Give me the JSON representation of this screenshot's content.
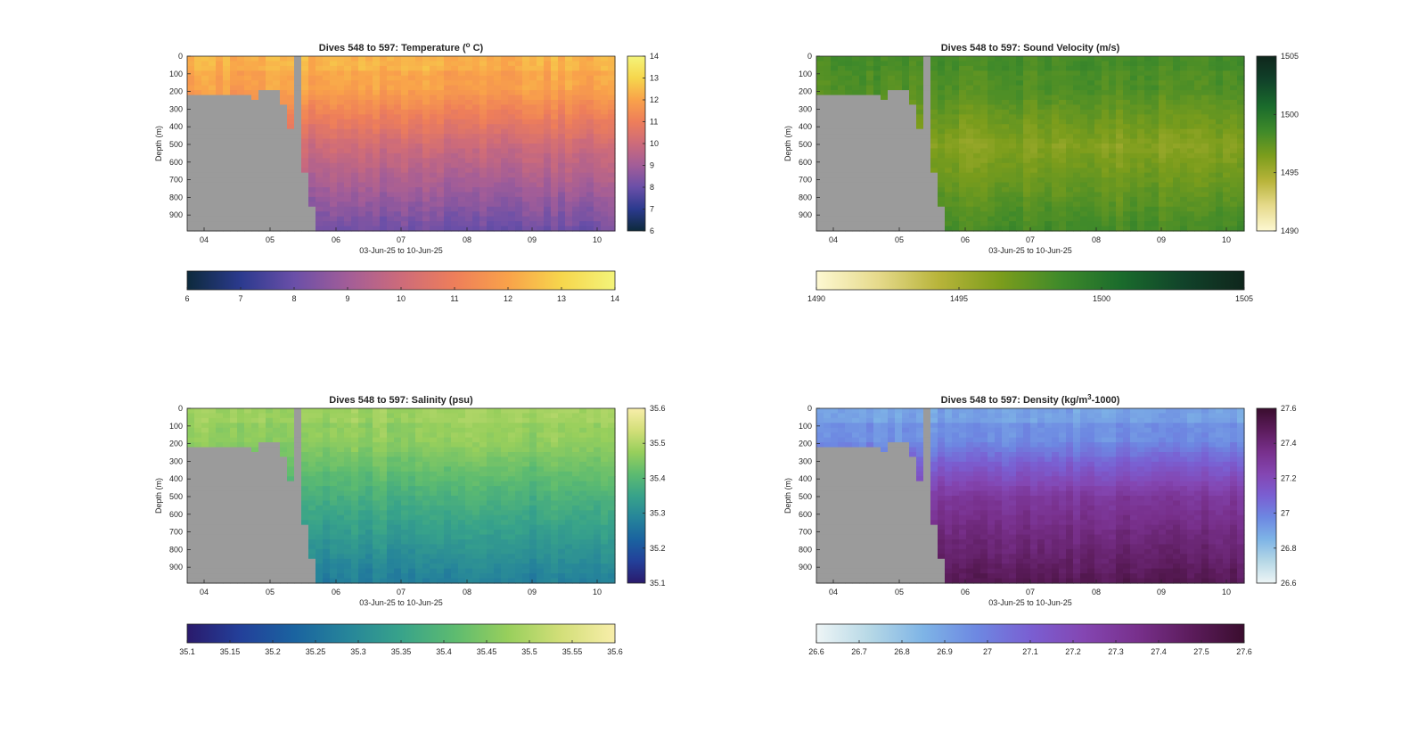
{
  "figure": {
    "panels": [
      {
        "id": "temperature",
        "title": "Dives 548 to 597: Temperature (",
        "title_sup": "o",
        "title_end": " C)",
        "ylabel": "Depth (m)",
        "xlabel": "03-Jun-25 to 10-Jun-25",
        "xticks": [
          "04",
          "05",
          "06",
          "07",
          "08",
          "09",
          "10"
        ],
        "yticks": [
          "0",
          "100",
          "200",
          "300",
          "400",
          "500",
          "600",
          "700",
          "800",
          "900"
        ],
        "colorbar_ticks": [
          "6",
          "7",
          "8",
          "9",
          "10",
          "11",
          "12",
          "13",
          "14"
        ],
        "side_colorbar_ticks": [
          "6",
          "7",
          "8",
          "9",
          "10",
          "11",
          "12",
          "13",
          "14"
        ],
        "colormap": [
          "#0d2a3c",
          "#2b3a8e",
          "#6a4fa8",
          "#a25d98",
          "#cd6b7a",
          "#ee7e5a",
          "#f9a24a",
          "#f6d64c",
          "#f4f47a"
        ]
      },
      {
        "id": "sound-velocity",
        "title": "Dives 548 to 597: Sound Velocity (m/s)",
        "title_sup": "",
        "title_end": "",
        "ylabel": "Depth (m)",
        "xlabel": "03-Jun-25 to 10-Jun-25",
        "xticks": [
          "04",
          "05",
          "06",
          "07",
          "08",
          "09",
          "10"
        ],
        "yticks": [
          "0",
          "100",
          "200",
          "300",
          "400",
          "500",
          "600",
          "700",
          "800",
          "900"
        ],
        "colorbar_ticks": [
          "1490",
          "1495",
          "1500",
          "1505"
        ],
        "side_colorbar_ticks": [
          "1490",
          "1495",
          "1500",
          "1505"
        ],
        "colormap": [
          "#fdf8d2",
          "#e6da8c",
          "#b8b43a",
          "#7c9d1c",
          "#3f8a2a",
          "#1a6b2c",
          "#11432a",
          "#0f261c"
        ]
      },
      {
        "id": "salinity",
        "title": "Dives 548 to 597: Salinity (psu)",
        "title_sup": "",
        "title_end": "",
        "ylabel": "Depth (m)",
        "xlabel": "03-Jun-25 to 10-Jun-25",
        "xticks": [
          "04",
          "05",
          "06",
          "07",
          "08",
          "09",
          "10"
        ],
        "yticks": [
          "0",
          "100",
          "200",
          "300",
          "400",
          "500",
          "600",
          "700",
          "800",
          "900"
        ],
        "colorbar_ticks": [
          "35.1",
          "35.15",
          "35.2",
          "35.25",
          "35.3",
          "35.35",
          "35.4",
          "35.45",
          "35.5",
          "35.55",
          "35.6"
        ],
        "side_colorbar_ticks": [
          "35.1",
          "35.2",
          "35.3",
          "35.4",
          "35.5",
          "35.6"
        ],
        "colormap": [
          "#2a1a6c",
          "#23409a",
          "#1a63a0",
          "#26859a",
          "#38a38a",
          "#5dbb70",
          "#98cf5c",
          "#d3df79",
          "#f8eeaa"
        ]
      },
      {
        "id": "density",
        "title": "Dives 548 to 597: Density (kg/m",
        "title_sup": "3",
        "title_end": "-1000)",
        "ylabel": "Depth (m)",
        "xlabel": "03-Jun-25 to 10-Jun-25",
        "xticks": [
          "04",
          "05",
          "06",
          "07",
          "08",
          "09",
          "10"
        ],
        "yticks": [
          "0",
          "100",
          "200",
          "300",
          "400",
          "500",
          "600",
          "700",
          "800",
          "900"
        ],
        "colorbar_ticks": [
          "26.6",
          "26.7",
          "26.8",
          "26.9",
          "27",
          "27.1",
          "27.2",
          "27.3",
          "27.4",
          "27.5",
          "27.6"
        ],
        "side_colorbar_ticks": [
          "26.6",
          "26.8",
          "27",
          "27.2",
          "27.4",
          "27.6"
        ],
        "colormap": [
          "#eef5f6",
          "#b6d8e6",
          "#7eb4e6",
          "#6d88e2",
          "#7a5fd2",
          "#8446b2",
          "#78308c",
          "#5c1c5c",
          "#3a0d2e"
        ]
      }
    ]
  },
  "chart_data": [
    {
      "type": "heatmap",
      "title": "Dives 548 to 597: Temperature (° C)",
      "xlabel": "03-Jun-25 to 10-Jun-25",
      "ylabel": "Depth (m)",
      "x_ticks": [
        "04",
        "05",
        "06",
        "07",
        "08",
        "09",
        "10"
      ],
      "ylim": [
        0,
        990
      ],
      "y_reversed": true,
      "clim": [
        6,
        14
      ],
      "surface_value": 12,
      "mid_value": 10,
      "deep_value": 8,
      "colorbar": "horizontal-below and vertical-right"
    },
    {
      "type": "heatmap",
      "title": "Dives 548 to 597: Sound Velocity (m/s)",
      "xlabel": "03-Jun-25 to 10-Jun-25",
      "ylabel": "Depth (m)",
      "x_ticks": [
        "04",
        "05",
        "06",
        "07",
        "08",
        "09",
        "10"
      ],
      "ylim": [
        0,
        990
      ],
      "y_reversed": true,
      "clim": [
        1490,
        1505
      ],
      "surface_value": 1498,
      "mid_value": 1496,
      "deep_value": 1498.5,
      "colorbar": "horizontal-below and vertical-right"
    },
    {
      "type": "heatmap",
      "title": "Dives 548 to 597: Salinity (psu)",
      "xlabel": "03-Jun-25 to 10-Jun-25",
      "ylabel": "Depth (m)",
      "x_ticks": [
        "04",
        "05",
        "06",
        "07",
        "08",
        "09",
        "10"
      ],
      "ylim": [
        0,
        990
      ],
      "y_reversed": true,
      "clim": [
        35.1,
        35.6
      ],
      "surface_value": 35.47,
      "mid_value": 35.38,
      "deep_value": 35.27,
      "colorbar": "horizontal-below and vertical-right"
    },
    {
      "type": "heatmap",
      "title": "Dives 548 to 597: Density (kg/m3-1000)",
      "xlabel": "03-Jun-25 to 10-Jun-25",
      "ylabel": "Depth (m)",
      "x_ticks": [
        "04",
        "05",
        "06",
        "07",
        "08",
        "09",
        "10"
      ],
      "ylim": [
        0,
        990
      ],
      "y_reversed": true,
      "clim": [
        26.6,
        27.6
      ],
      "surface_value": 26.95,
      "mid_value": 27.3,
      "deep_value": 27.5,
      "colorbar": "horizontal-below and vertical-right"
    }
  ]
}
